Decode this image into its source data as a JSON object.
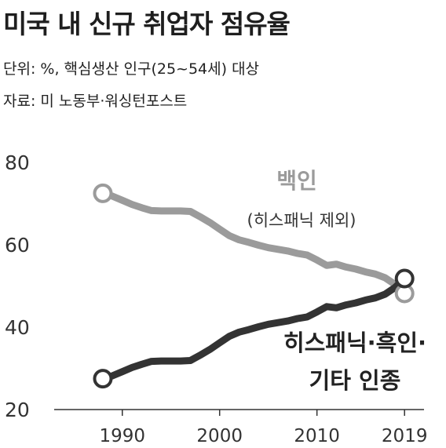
{
  "title": "미국 내 신규 취업자 점유율",
  "unit": "단위: %, 핵심생산 인구(25~54세) 대상",
  "source": "자료: 미 노동부·워싱턴포스트",
  "chart_data": {
    "type": "line",
    "xlim": [
      1983,
      2021
    ],
    "ylim": [
      20,
      80
    ],
    "x_ticks": [
      1990,
      2000,
      2010,
      2019
    ],
    "y_ticks": [
      20,
      40,
      60,
      80
    ],
    "grid": false,
    "series": [
      {
        "name": "백인",
        "note": "(히스패닉 제외)",
        "color": "#9b9b9b",
        "x": [
          1988,
          1989,
          1990,
          1991,
          1992,
          1993,
          1994,
          1995,
          1996,
          1997,
          1998,
          1999,
          2000,
          2001,
          2002,
          2003,
          2004,
          2005,
          2006,
          2007,
          2008,
          2009,
          2010,
          2011,
          2012,
          2013,
          2014,
          2015,
          2016,
          2017,
          2018,
          2019
        ],
        "y": [
          72.5,
          71.8,
          70.8,
          69.8,
          69.0,
          68.3,
          68.2,
          68.2,
          68.2,
          68.1,
          66.8,
          65.4,
          63.8,
          62.2,
          61.2,
          60.6,
          59.9,
          59.3,
          58.9,
          58.5,
          57.9,
          57.5,
          56.3,
          55.0,
          55.3,
          54.6,
          54.1,
          53.4,
          52.9,
          52.0,
          50.4,
          48.2
        ]
      },
      {
        "name": "히스패닉·흑인·기타 인종",
        "color": "#333333",
        "x": [
          1988,
          1989,
          1990,
          1991,
          1992,
          1993,
          1994,
          1995,
          1996,
          1997,
          1998,
          1999,
          2000,
          2001,
          2002,
          2003,
          2004,
          2005,
          2006,
          2007,
          2008,
          2009,
          2010,
          2011,
          2012,
          2013,
          2014,
          2015,
          2016,
          2017,
          2018,
          2019
        ],
        "y": [
          27.5,
          28.2,
          29.2,
          30.2,
          31.0,
          31.7,
          31.8,
          31.8,
          31.8,
          31.9,
          33.2,
          34.6,
          36.2,
          37.8,
          38.8,
          39.4,
          40.1,
          40.7,
          41.1,
          41.5,
          42.1,
          42.5,
          43.7,
          45.0,
          44.7,
          45.4,
          45.9,
          46.6,
          47.1,
          48.0,
          49.6,
          51.8
        ]
      }
    ],
    "labels": {
      "white_name": "백인",
      "white_note": "(히스패닉 제외)",
      "other_line1": "히스패닉·흑인·",
      "other_line2": "기타 인종"
    }
  }
}
